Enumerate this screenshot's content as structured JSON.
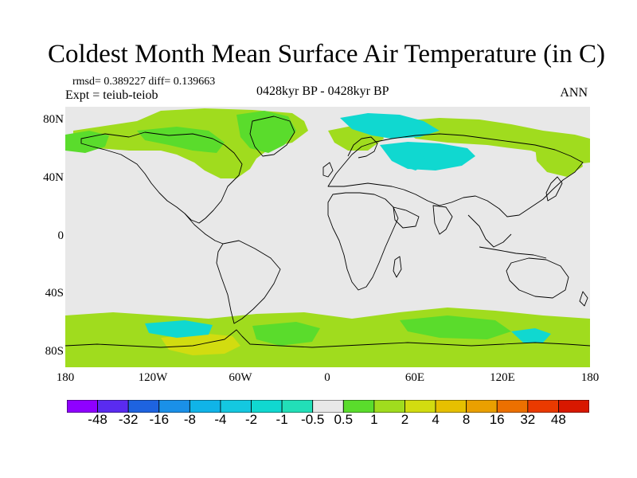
{
  "title": "Coldest Month Mean Surface Air Temperature (in C)",
  "stats_line": "rmsd= 0.389227 diff= 0.139663",
  "expt_line": "Expt = teiub-teiob",
  "period_label": "0428kyr BP - 0428kyr BP",
  "season_label": "ANN",
  "latitude_labels": [
    "80N",
    "40N",
    "0",
    "40S",
    "80S"
  ],
  "longitude_labels": [
    "180",
    "120W",
    "60W",
    "0",
    "60E",
    "120E",
    "180"
  ],
  "colorbar": {
    "labels": [
      "-48",
      "-32",
      "-16",
      "-8",
      "-4",
      "-2",
      "-1",
      "-0.5",
      "0.5",
      "1",
      "2",
      "4",
      "8",
      "16",
      "32",
      "48"
    ],
    "colors": [
      "#8f00ff",
      "#5a2bf0",
      "#1e63e0",
      "#1a90e8",
      "#10b4e8",
      "#14c8e0",
      "#10d8d0",
      "#22dfb8",
      "#e8e8e8",
      "#5adc2c",
      "#a0dc1e",
      "#d2dc10",
      "#e6c000",
      "#eaa000",
      "#ec7000",
      "#ea3a00",
      "#d81800"
    ]
  },
  "colors": {
    "background": "#e8e8e8",
    "warm_anomaly": "#a0dc1e",
    "warm_strong": "#d2dc10",
    "weak_warm": "#5adc2c",
    "cool_anomaly": "#10d8d0",
    "coastline": "#000000"
  }
}
